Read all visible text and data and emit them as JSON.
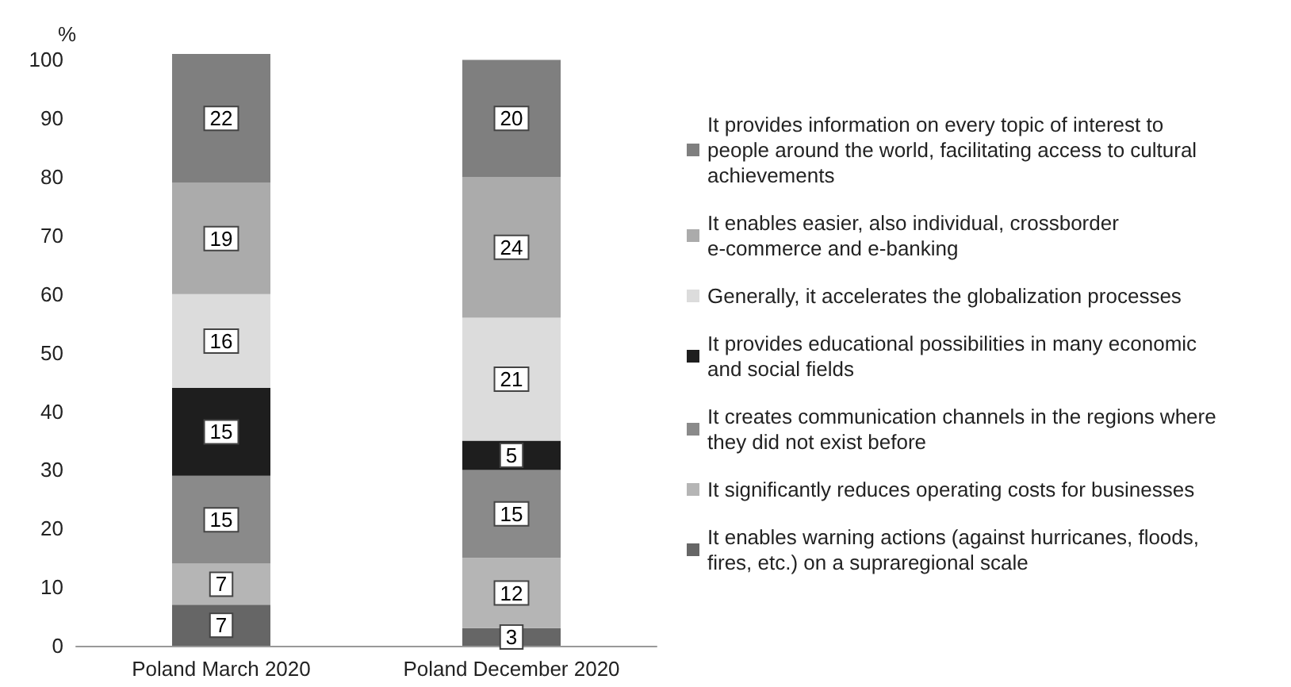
{
  "chart_data": {
    "type": "bar",
    "stacked": true,
    "ylabel": "%",
    "categories": [
      "Poland March 2020",
      "Poland December 2020"
    ],
    "ylim": [
      0,
      101
    ],
    "yticks": [
      0,
      10,
      20,
      30,
      40,
      50,
      60,
      70,
      80,
      90,
      100
    ],
    "grid": false,
    "legend": "right",
    "data_labels": true,
    "series": [
      {
        "name": "It enables warning actions (against hurricanes, floods, fires, etc.) on a supraregional scale",
        "color": "#666666",
        "values": [
          7,
          3
        ]
      },
      {
        "name": "It significantly reduces operating costs for businesses",
        "color": "#b5b5b5",
        "values": [
          7,
          12
        ]
      },
      {
        "name": "It creates communication channels in the regions where they did not exist before",
        "color": "#8a8a8a",
        "values": [
          15,
          15
        ]
      },
      {
        "name": "It provides educational possibilities in many economic and social fields",
        "color": "#1e1e1e",
        "values": [
          15,
          5
        ]
      },
      {
        "name": "Generally, it accelerates the globalization processes",
        "color": "#dcdcdc",
        "values": [
          16,
          21
        ]
      },
      {
        "name": "It enables easier, also individual, crossborder e-commerce and e-banking",
        "color": "#ababab",
        "values": [
          19,
          24
        ]
      },
      {
        "name": "It provides information on every topic of interest to people around the world, facilitating access to cultural achievements",
        "color": "#7f7f7f",
        "values": [
          22,
          20
        ]
      }
    ]
  }
}
